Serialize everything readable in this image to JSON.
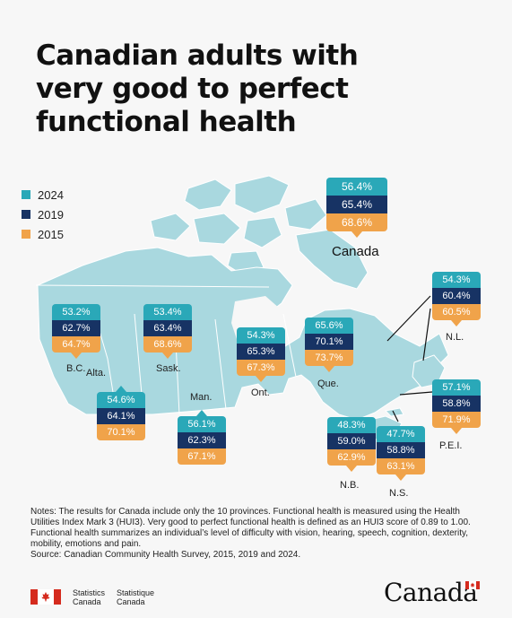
{
  "title_lines": [
    "Canadian adults with",
    "very good to perfect",
    "functional health"
  ],
  "colors": {
    "2024": "#2aa8b8",
    "2019": "#173364",
    "2015": "#f0a34a",
    "land": "#a9d8df"
  },
  "legend": [
    {
      "year": "2024",
      "color": "#2aa8b8"
    },
    {
      "year": "2019",
      "color": "#173364"
    },
    {
      "year": "2015",
      "color": "#f0a34a"
    }
  ],
  "regions": {
    "canada": {
      "name": "Canada",
      "y2024": "56.4%",
      "y2019": "65.4%",
      "y2015": "68.6%"
    },
    "bc": {
      "name": "B.C.",
      "y2024": "53.2%",
      "y2019": "62.7%",
      "y2015": "64.7%"
    },
    "ab": {
      "name": "Alta.",
      "y2024": "54.6%",
      "y2019": "64.1%",
      "y2015": "70.1%"
    },
    "sk": {
      "name": "Sask.",
      "y2024": "53.4%",
      "y2019": "63.4%",
      "y2015": "68.6%"
    },
    "mb": {
      "name": "Man.",
      "y2024": "56.1%",
      "y2019": "62.3%",
      "y2015": "67.1%"
    },
    "on": {
      "name": "Ont.",
      "y2024": "54.3%",
      "y2019": "65.3%",
      "y2015": "67.3%"
    },
    "qc": {
      "name": "Que.",
      "y2024": "65.6%",
      "y2019": "70.1%",
      "y2015": "73.7%"
    },
    "nl": {
      "name": "N.L.",
      "y2024": "54.3%",
      "y2019": "60.4%",
      "y2015": "60.5%"
    },
    "pe": {
      "name": "P.E.I.",
      "y2024": "57.1%",
      "y2019": "58.8%",
      "y2015": "71.9%"
    },
    "nb": {
      "name": "N.B.",
      "y2024": "48.3%",
      "y2019": "59.0%",
      "y2015": "62.9%"
    },
    "ns": {
      "name": "N.S.",
      "y2024": "47.7%",
      "y2019": "58.8%",
      "y2015": "63.1%"
    }
  },
  "notes": [
    "Notes: The results for Canada include only the 10 provinces. Functional health is measured using the Health Utilities Index Mark 3 (HUI3). Very good to perfect functional health is defined as an HUI3 score of 0.89 to 1.00. Functional health summarizes an individual’s level of difficulty with vision, hearing, speech, cognition, dexterity, mobility, emotions and pain.",
    "Source: Canadian Community Health Survey, 2015, 2019 and 2024."
  ],
  "footer": {
    "agency_en_1": "Statistics",
    "agency_en_2": "Canada",
    "agency_fr_1": "Statistique",
    "agency_fr_2": "Canada",
    "wordmark": "Canada"
  }
}
